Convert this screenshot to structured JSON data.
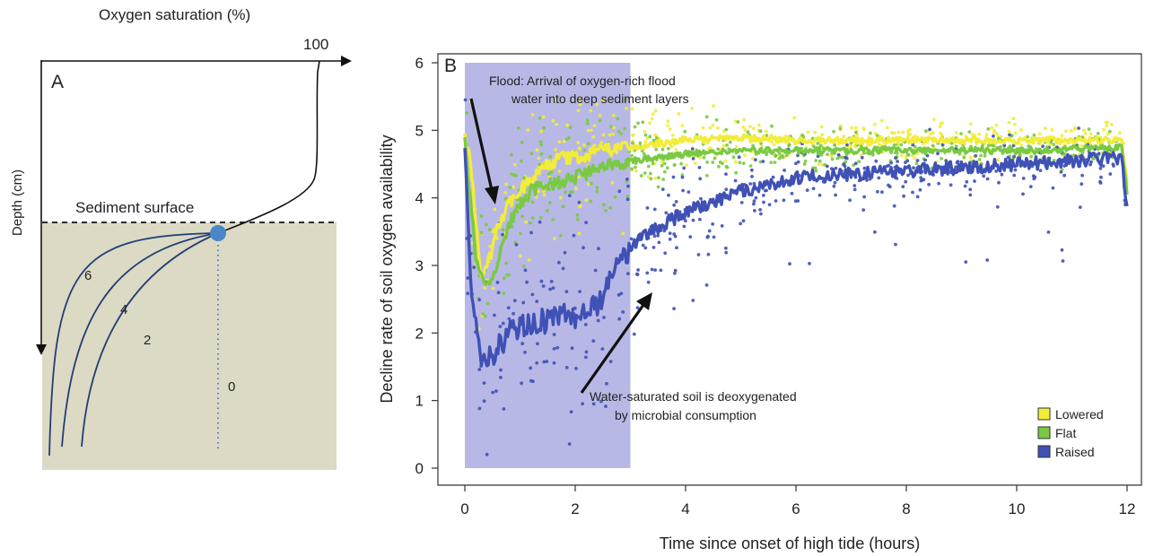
{
  "panel_a": {
    "letter": "A",
    "x_axis_label": "Oxygen saturation (%)",
    "x_max_label": "100",
    "y_axis_label": "Depth (cm)",
    "surface_label": "Sediment surface",
    "profile_labels": [
      "6",
      "4",
      "2",
      "0"
    ],
    "colors": {
      "sediment": "#dcd9c4",
      "profile": "#1f3f73",
      "marker": "#4a86c8"
    }
  },
  "panel_b": {
    "letter": "B",
    "annotation_flood": [
      "Flood: Arrival of oxygen-rich flood",
      "water into deep sediment layers"
    ],
    "annotation_water": [
      "Water-saturated soil is deoxygenated",
      "by microbial consumption"
    ],
    "legend": [
      {
        "label": "Lowered",
        "color": "#f2ec3a"
      },
      {
        "label": "Flat",
        "color": "#7ac943"
      },
      {
        "label": "Raised",
        "color": "#3f51b5"
      }
    ],
    "flood_shading_color": "#b8b8e6"
  },
  "chart_data": {
    "type": "scatter",
    "title": "",
    "xlabel": "Time since onset of high tide (hours)",
    "ylabel": "Decline rate of soil oxygen availability",
    "xlim": [
      0,
      12
    ],
    "ylim": [
      0,
      6
    ],
    "xticks": [
      0,
      2,
      4,
      6,
      8,
      10,
      12
    ],
    "yticks": [
      0,
      1,
      2,
      3,
      4,
      5,
      6
    ],
    "flood_period": [
      0,
      3
    ],
    "grid": false,
    "legend_position": "bottom-right",
    "series": [
      {
        "name": "Lowered",
        "color": "#f2ec3a",
        "trend": [
          [
            0,
            4.9
          ],
          [
            0.1,
            4.6
          ],
          [
            0.2,
            3.6
          ],
          [
            0.3,
            2.8
          ],
          [
            0.4,
            3.0
          ],
          [
            0.5,
            3.2
          ],
          [
            0.6,
            3.6
          ],
          [
            0.8,
            3.9
          ],
          [
            1.0,
            4.1
          ],
          [
            1.2,
            4.3
          ],
          [
            1.5,
            4.5
          ],
          [
            1.8,
            4.6
          ],
          [
            2.0,
            4.6
          ],
          [
            2.5,
            4.7
          ],
          [
            3.0,
            4.75
          ],
          [
            4.0,
            4.85
          ],
          [
            5.0,
            4.9
          ],
          [
            6.0,
            4.85
          ],
          [
            8.0,
            4.85
          ],
          [
            10.0,
            4.85
          ],
          [
            11.9,
            4.85
          ],
          [
            12,
            4.2
          ]
        ]
      },
      {
        "name": "Flat",
        "color": "#7ac943",
        "trend": [
          [
            0,
            4.8
          ],
          [
            0.1,
            4.0
          ],
          [
            0.2,
            3.1
          ],
          [
            0.3,
            2.8
          ],
          [
            0.4,
            2.75
          ],
          [
            0.5,
            2.8
          ],
          [
            0.6,
            3.1
          ],
          [
            0.8,
            3.6
          ],
          [
            1.0,
            3.9
          ],
          [
            1.2,
            4.1
          ],
          [
            1.5,
            4.2
          ],
          [
            2.0,
            4.3
          ],
          [
            2.5,
            4.45
          ],
          [
            3.0,
            4.55
          ],
          [
            4.0,
            4.65
          ],
          [
            5.0,
            4.7
          ],
          [
            6.0,
            4.7
          ],
          [
            8.0,
            4.7
          ],
          [
            10.0,
            4.7
          ],
          [
            11.9,
            4.75
          ],
          [
            12,
            4.1
          ]
        ]
      },
      {
        "name": "Raised",
        "color": "#3f51b5",
        "trend": [
          [
            0,
            4.6
          ],
          [
            0.1,
            2.8
          ],
          [
            0.2,
            2.2
          ],
          [
            0.3,
            1.6
          ],
          [
            0.4,
            1.5
          ],
          [
            0.5,
            1.7
          ],
          [
            0.6,
            1.8
          ],
          [
            0.8,
            2.0
          ],
          [
            1.0,
            2.1
          ],
          [
            1.5,
            2.2
          ],
          [
            2.0,
            2.25
          ],
          [
            2.5,
            2.5
          ],
          [
            2.8,
            3.0
          ],
          [
            3.0,
            3.3
          ],
          [
            3.5,
            3.55
          ],
          [
            4.0,
            3.8
          ],
          [
            5.0,
            4.1
          ],
          [
            6.0,
            4.3
          ],
          [
            7.0,
            4.35
          ],
          [
            8.0,
            4.4
          ],
          [
            9.0,
            4.45
          ],
          [
            10.0,
            4.5
          ],
          [
            11.0,
            4.55
          ],
          [
            11.9,
            4.6
          ],
          [
            12,
            3.9
          ]
        ]
      }
    ]
  }
}
